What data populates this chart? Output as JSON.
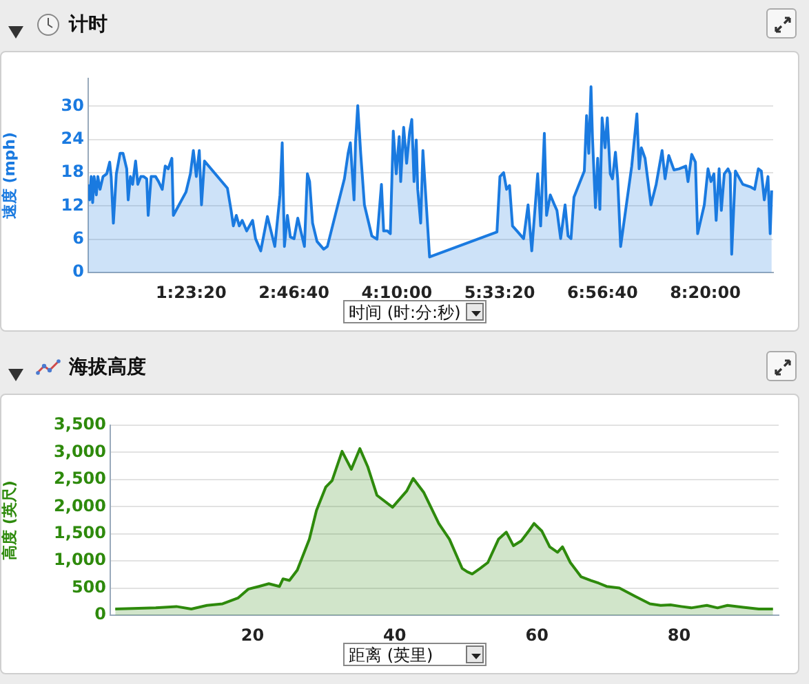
{
  "chart_data": [
    {
      "type": "area",
      "title": "计时",
      "xlabel": "时间 (时:分:秒)",
      "ylabel": "速度 (mph)",
      "grid": "y",
      "xlim": [
        0,
        9.25
      ],
      "ylim": [
        0,
        35
      ],
      "xticks": [
        {
          "value": 0,
          "label": null
        },
        {
          "value": 1.3889,
          "label": "1:23:20"
        },
        {
          "value": 2.7778,
          "label": "2:46:40"
        },
        {
          "value": 4.1667,
          "label": "4:10:00"
        },
        {
          "value": 5.5556,
          "label": "5:33:20"
        },
        {
          "value": 6.9444,
          "label": "6:56:40"
        },
        {
          "value": 8.3333,
          "label": "8:20:00"
        }
      ],
      "yticks": [
        0,
        6,
        12,
        18,
        24,
        30
      ],
      "x": [
        0,
        0.02,
        0.04,
        0.06,
        0.08,
        0.11,
        0.13,
        0.16,
        0.2,
        0.25,
        0.29,
        0.31,
        0.34,
        0.38,
        0.43,
        0.47,
        0.52,
        0.54,
        0.57,
        0.6,
        0.64,
        0.67,
        0.71,
        0.75,
        0.79,
        0.81,
        0.85,
        0.91,
        0.95,
        1,
        1.04,
        1.08,
        1.13,
        1.15,
        1.32,
        1.38,
        1.42,
        1.46,
        1.5,
        1.53,
        1.57,
        1.88,
        1.93,
        1.96,
        2,
        2.04,
        2.08,
        2.14,
        2.22,
        2.26,
        2.33,
        2.42,
        2.52,
        2.59,
        2.62,
        2.65,
        2.69,
        2.73,
        2.78,
        2.83,
        2.92,
        2.96,
        2.99,
        3.03,
        3.09,
        3.18,
        3.23,
        3.46,
        3.51,
        3.54,
        3.59,
        3.61,
        3.64,
        3.68,
        3.73,
        3.83,
        3.9,
        3.96,
        3.99,
        4.04,
        4.08,
        4.12,
        4.16,
        4.2,
        4.22,
        4.26,
        4.3,
        4.34,
        4.37,
        4.4,
        4.43,
        4.45,
        4.49,
        4.52,
        4.61,
        5.52,
        5.56,
        5.61,
        5.65,
        5.69,
        5.73,
        5.79,
        5.88,
        5.94,
        5.99,
        6.07,
        6.11,
        6.16,
        6.19,
        6.24,
        6.29,
        6.33,
        6.38,
        6.44,
        6.48,
        6.52,
        6.56,
        6.7,
        6.73,
        6.76,
        6.79,
        6.81,
        6.85,
        6.88,
        6.91,
        6.94,
        6.98,
        7.01,
        7.05,
        7.08,
        7.12,
        7.15,
        7.19,
        7.34,
        7.41,
        7.44,
        7.47,
        7.52,
        7.56,
        7.6,
        7.67,
        7.75,
        7.79,
        7.84,
        7.91,
        7.98,
        8.07,
        8.1,
        8.15,
        8.2,
        8.23,
        8.32,
        8.37,
        8.41,
        8.45,
        8.48,
        8.52,
        8.55,
        8.59,
        8.64,
        8.67,
        8.69,
        8.74,
        8.84,
        8.95,
        9,
        9.05,
        9.09,
        9.13,
        9.18,
        9.21,
        9.23
      ],
      "series": [
        {
          "color": "#1a7ae0",
          "values": [
            15.9,
            13.1,
            17.3,
            12.6,
            17.3,
            14,
            17.3,
            15,
            17.3,
            17.8,
            19.9,
            17.3,
            8.9,
            17.8,
            21.5,
            21.5,
            18.7,
            13.1,
            17.3,
            15.9,
            20.1,
            15.9,
            17.3,
            17.3,
            16.9,
            10.3,
            17.3,
            17.3,
            16.4,
            15,
            19.2,
            18.7,
            20.6,
            10.3,
            14.5,
            17.8,
            22,
            17.3,
            22,
            12.2,
            20.1,
            15.2,
            11.2,
            8.4,
            10.3,
            8.4,
            9.4,
            7.5,
            9.4,
            6.1,
            3.9,
            10.1,
            4.7,
            14,
            23.4,
            4.7,
            10.3,
            6.4,
            6.1,
            9.8,
            4.7,
            17.8,
            16.4,
            8.9,
            5.6,
            4.2,
            4.7,
            16.9,
            21.5,
            23.4,
            13.1,
            23.4,
            30.1,
            21.5,
            12.2,
            6.6,
            6,
            15.9,
            7.5,
            7.5,
            7,
            25.5,
            17.8,
            24.5,
            16.4,
            26.2,
            19.7,
            25.3,
            27.6,
            16.4,
            23.9,
            15,
            8.9,
            22,
            2.8,
            7.3,
            17.3,
            18,
            15,
            15.7,
            8.4,
            7.5,
            6.1,
            12.2,
            3.9,
            17.8,
            8.4,
            25.1,
            10.3,
            14,
            12.4,
            11.2,
            6.1,
            12.2,
            6.6,
            6.1,
            13.6,
            18.3,
            28.3,
            21.5,
            33.5,
            24.3,
            11.7,
            20.6,
            11.4,
            27.9,
            22.5,
            27.9,
            17.8,
            16.9,
            21.7,
            16.9,
            4.7,
            19.2,
            28.6,
            18.7,
            22.5,
            20.6,
            16.4,
            12.2,
            15.9,
            22,
            16.9,
            21.1,
            18.5,
            18.7,
            19.2,
            16.4,
            21.3,
            19.9,
            7,
            12.2,
            18.7,
            16.4,
            17.8,
            9.4,
            18.7,
            11.2,
            17.8,
            18.7,
            17.8,
            3.3,
            18.3,
            15.9,
            15.4,
            15,
            18.7,
            18.3,
            13.1,
            17.3,
            7,
            14.8
          ]
        }
      ]
    },
    {
      "type": "area",
      "title": "海拔高度",
      "xlabel": "距离 (英里)",
      "ylabel": "高度 (英尺)",
      "grid": "y",
      "xlim": [
        0,
        94
      ],
      "ylim": [
        0,
        3500
      ],
      "xticks": [
        20,
        40,
        60,
        80
      ],
      "yticks": [
        0,
        500,
        {
          "value": 1000,
          "label": "1,000"
        },
        {
          "value": 1500,
          "label": "1,500"
        },
        {
          "value": 2000,
          "label": "2,000"
        },
        {
          "value": 2500,
          "label": "2,500"
        },
        {
          "value": 3000,
          "label": "3,000"
        },
        {
          "value": 3500,
          "label": "3,500"
        }
      ],
      "x": [
        0.7,
        6.4,
        9.3,
        11.4,
        13.6,
        15.8,
        18,
        19.4,
        20.9,
        22.3,
        23.8,
        24.3,
        25.2,
        26.3,
        28,
        29,
        30.3,
        31.2,
        32.6,
        33.9,
        35.1,
        36.2,
        37.5,
        39.7,
        41.7,
        42.6,
        44.1,
        46.2,
        47.7,
        49.5,
        50.2,
        50.9,
        52,
        53.1,
        54.6,
        55.7,
        56.7,
        57.8,
        58.9,
        59.6,
        60.7,
        61.8,
        62.9,
        63.6,
        64.7,
        66.2,
        67.6,
        68.7,
        69.8,
        71.6,
        73.8,
        75.9,
        77.4,
        78.8,
        80.3,
        81.7,
        83.9,
        85.4,
        86.8,
        89,
        91.2,
        93.2
      ],
      "series": [
        {
          "color": "#2e8a0c",
          "values": [
            115,
            135,
            160,
            115,
            180,
            210,
            320,
            480,
            530,
            580,
            530,
            670,
            640,
            830,
            1400,
            1930,
            2360,
            2480,
            3020,
            2690,
            3070,
            2740,
            2210,
            1990,
            2290,
            2520,
            2260,
            1690,
            1400,
            860,
            800,
            760,
            860,
            970,
            1400,
            1530,
            1280,
            1370,
            1560,
            1690,
            1550,
            1260,
            1160,
            1260,
            970,
            710,
            640,
            590,
            530,
            500,
            350,
            210,
            180,
            190,
            160,
            135,
            180,
            135,
            180,
            145,
            115,
            115
          ]
        }
      ]
    }
  ]
}
